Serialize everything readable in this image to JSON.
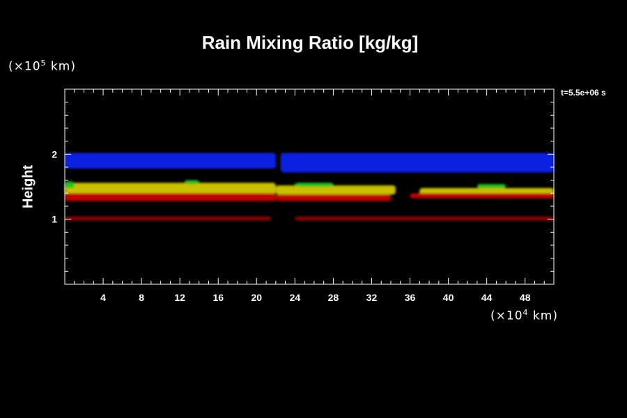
{
  "chart_data": {
    "type": "heatmap",
    "title": "Rain Mixing Ratio [kg/kg]",
    "ylabel": "Height",
    "y_unit": {
      "prefix": "(×10",
      "exp": "5",
      "suffix": " km)"
    },
    "x_unit": {
      "prefix": "(×10",
      "exp": "4",
      "suffix": " km)"
    },
    "time_label": "t=5.5e+06 s",
    "xlim": [
      0,
      51
    ],
    "ylim": [
      0,
      3
    ],
    "x_ticks": [
      4,
      8,
      12,
      16,
      20,
      24,
      28,
      32,
      36,
      40,
      44,
      48
    ],
    "y_ticks": [
      1,
      2
    ],
    "colors": {
      "blue": "#1020e0",
      "yellow": "#c8c000",
      "green": "#20c020",
      "red": "#c00000",
      "darkred": "#900000",
      "axis": "#ffffff"
    },
    "bands": [
      {
        "name": "upper",
        "color": "blue",
        "segments": [
          [
            0,
            22,
            1.78,
            2.02
          ],
          [
            22.5,
            51,
            1.72,
            2.02
          ]
        ]
      },
      {
        "name": "middle",
        "color": "yellow",
        "segments": [
          [
            0,
            22,
            1.38,
            1.56
          ],
          [
            22,
            34.5,
            1.38,
            1.52
          ],
          [
            37,
            51,
            1.38,
            1.48
          ]
        ]
      },
      {
        "name": "middle-edge",
        "color": "green",
        "segments": [
          [
            0,
            1,
            1.48,
            1.58
          ],
          [
            12.5,
            14,
            1.54,
            1.6
          ],
          [
            24,
            28,
            1.5,
            1.56
          ],
          [
            43,
            46,
            1.48,
            1.54
          ]
        ]
      },
      {
        "name": "lower",
        "color": "red",
        "segments": [
          [
            0,
            22,
            1.28,
            1.4
          ],
          [
            22,
            34,
            1.28,
            1.38
          ],
          [
            36,
            51,
            1.32,
            1.4
          ]
        ]
      },
      {
        "name": "bottom",
        "color": "darkred",
        "segments": [
          [
            0,
            21.5,
            0.98,
            1.04
          ],
          [
            24,
            51,
            0.98,
            1.04
          ]
        ]
      }
    ]
  }
}
